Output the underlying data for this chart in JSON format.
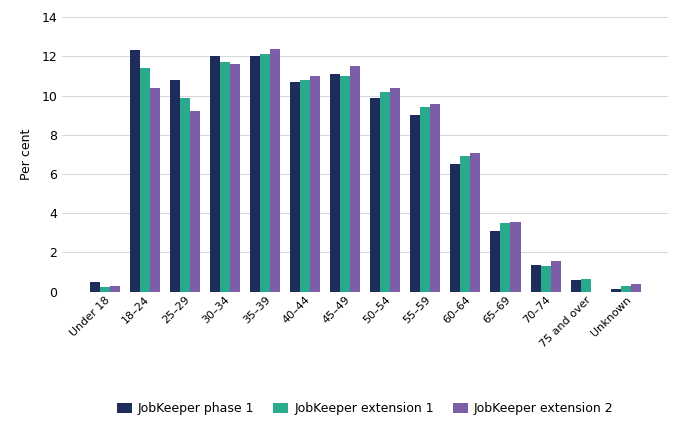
{
  "categories": [
    "Under 18",
    "18–24",
    "25–29",
    "30–34",
    "35–39",
    "40–44",
    "45–49",
    "50–54",
    "55–59",
    "60–64",
    "65–69",
    "70–74",
    "75 and over",
    "Unknown"
  ],
  "phase1": [
    0.5,
    12.3,
    10.8,
    12.0,
    12.0,
    10.7,
    11.1,
    9.9,
    9.0,
    6.5,
    3.1,
    1.35,
    0.6,
    0.15
  ],
  "extension1": [
    0.25,
    11.4,
    9.9,
    11.7,
    12.1,
    10.8,
    11.0,
    10.2,
    9.4,
    6.9,
    3.5,
    1.3,
    0.65,
    0.3
  ],
  "extension2": [
    0.3,
    10.4,
    9.2,
    11.6,
    12.4,
    11.0,
    11.5,
    10.4,
    9.55,
    7.05,
    3.55,
    1.55,
    0.0,
    0.38
  ],
  "colors": {
    "phase1": "#1f2d5c",
    "extension1": "#2aaa8c",
    "extension2": "#7b5ea7"
  },
  "ylabel": "Per cent",
  "ylim": [
    0,
    14
  ],
  "yticks": [
    0,
    2,
    4,
    6,
    8,
    10,
    12,
    14
  ],
  "legend_labels": [
    "JobKeeper phase 1",
    "JobKeeper extension 1",
    "JobKeeper extension 2"
  ],
  "background_color": "#ffffff",
  "bar_width": 0.25,
  "figsize": [
    6.89,
    4.29
  ],
  "dpi": 100
}
